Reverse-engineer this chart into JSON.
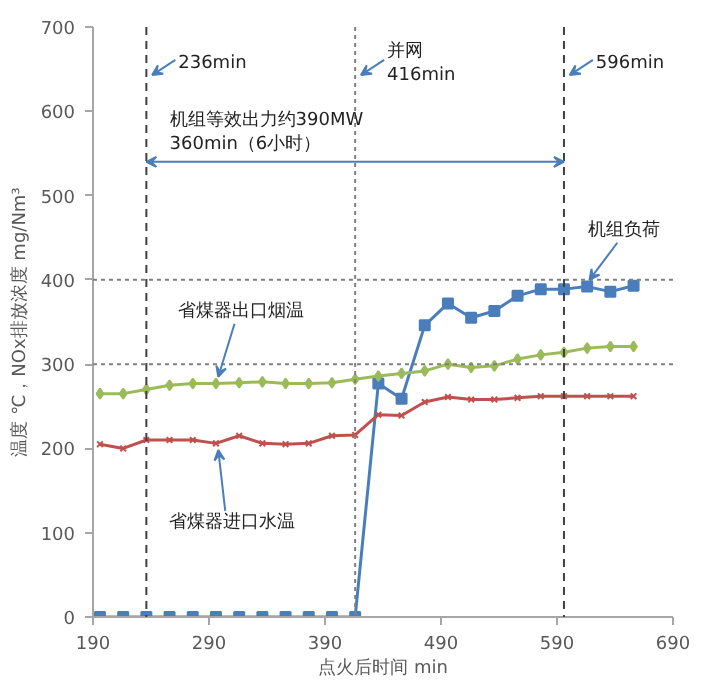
{
  "chart_data": {
    "type": "line",
    "xlabel": "点火后时间 min",
    "ylabel": "温度 ℃，NOx排放浓度 mg/Nm³",
    "x": [
      196,
      216,
      236,
      256,
      276,
      296,
      316,
      336,
      356,
      376,
      396,
      416,
      436,
      456,
      476,
      496,
      516,
      536,
      556,
      576,
      596,
      616,
      636,
      656
    ],
    "series": [
      {
        "name": "机组负荷",
        "color": "#4a7ebb",
        "marker": "square",
        "values": [
          0,
          0,
          0,
          0,
          0,
          0,
          0,
          0,
          0,
          0,
          0,
          0,
          277,
          259,
          346,
          372,
          355,
          363,
          381,
          389,
          389,
          392,
          386,
          393
        ]
      },
      {
        "name": "省煤器出口烟温",
        "color": "#9bbb59",
        "marker": "diamond",
        "values": [
          265,
          265,
          270,
          275,
          277,
          277,
          278,
          279,
          277,
          277,
          278,
          282,
          286,
          289,
          292,
          300,
          296,
          298,
          306,
          311,
          314,
          319,
          321,
          321
        ]
      },
      {
        "name": "省煤器进口水温",
        "color": "#c0504d",
        "marker": "cross",
        "values": [
          205,
          200,
          210,
          210,
          210,
          206,
          215,
          206,
          205,
          206,
          215,
          216,
          240,
          239,
          255,
          261,
          258,
          258,
          260,
          262,
          262,
          262,
          262,
          262
        ]
      }
    ],
    "xlim": [
      190,
      690
    ],
    "xticks": [
      190,
      290,
      390,
      490,
      590,
      690
    ],
    "ylim": [
      0,
      700
    ],
    "yticks": [
      0,
      100,
      200,
      300,
      400,
      500,
      600,
      700
    ],
    "grid": false,
    "line_style": "solid",
    "ref_lines": [
      {
        "axis": "x",
        "value": 236,
        "label": "236min",
        "line_style": "dashed",
        "color": "#404040"
      },
      {
        "axis": "x",
        "value": 416,
        "label": "并网\n416min",
        "line_style": "dotted",
        "color": "#808080"
      },
      {
        "axis": "x",
        "value": 596,
        "label": "596min",
        "line_style": "dashed",
        "color": "#404040"
      },
      {
        "axis": "y",
        "value": 300,
        "line_style": "dotted",
        "color": "#808080"
      },
      {
        "axis": "y",
        "value": 400,
        "line_style": "dotted",
        "color": "#808080"
      }
    ],
    "annotations": [
      {
        "text": "机组等效出力约390MW\n360min（6小时）",
        "x": 236,
        "y": 540
      }
    ]
  }
}
